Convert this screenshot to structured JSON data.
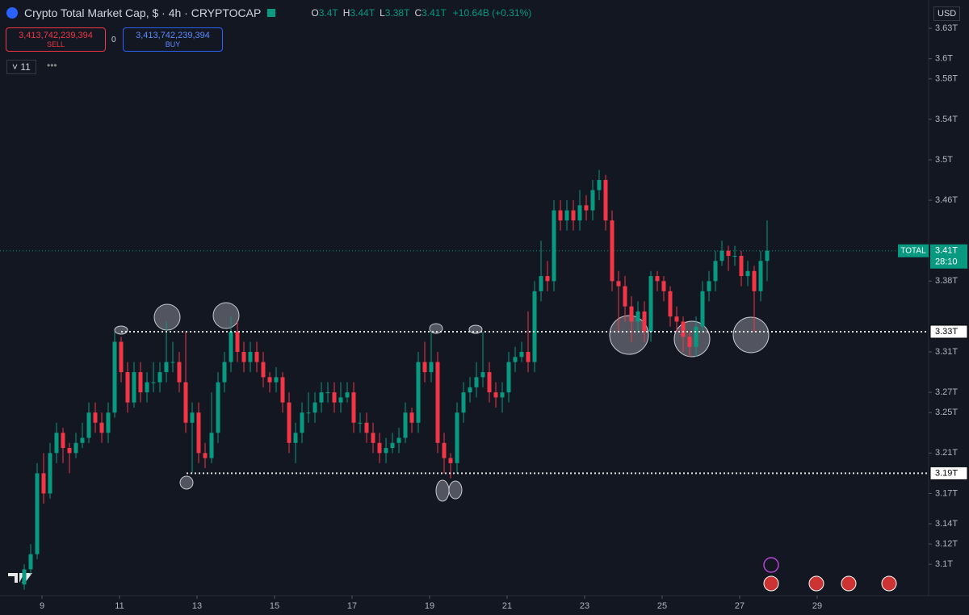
{
  "header": {
    "title": "Crypto Total Market Cap, $ · 4h · CRYPTOCAP",
    "ohlc": [
      {
        "key": "O",
        "text": "3.4T"
      },
      {
        "key": "H",
        "text": "3.44T"
      },
      {
        "key": "L",
        "text": "3.38T"
      },
      {
        "key": "C",
        "text": "3.41T"
      }
    ],
    "change": "+10.64B (+0.31%)",
    "sell": {
      "price": "3,413,742,239,394",
      "label": "SELL"
    },
    "spread": "0",
    "buy": {
      "price": "3,413,742,239,394",
      "label": "BUY"
    },
    "indicators": "11",
    "currency": "USD"
  },
  "chart_data": {
    "type": "candlestick",
    "up_color": "#089981",
    "down_color": "#f23645",
    "open": [
      3.08,
      3.095,
      3.11,
      3.19,
      3.17,
      3.21,
      3.23,
      3.215,
      3.21,
      3.22,
      3.225,
      3.25,
      3.24,
      3.23,
      3.25,
      3.32,
      3.29,
      3.26,
      3.29,
      3.27,
      3.28,
      3.28,
      3.29,
      3.3,
      3.3,
      3.28,
      3.24,
      3.25,
      3.21,
      3.205,
      3.23,
      3.28,
      3.3,
      3.33,
      3.31,
      3.3,
      3.31,
      3.3,
      3.285,
      3.28,
      3.285,
      3.26,
      3.22,
      3.23,
      3.25,
      3.25,
      3.26,
      3.27,
      3.27,
      3.26,
      3.265,
      3.27,
      3.24,
      3.24,
      3.23,
      3.22,
      3.21,
      3.215,
      3.22,
      3.225,
      3.25,
      3.24,
      3.3,
      3.29,
      3.3,
      3.22,
      3.205,
      3.2,
      3.25,
      3.27,
      3.275,
      3.285,
      3.29,
      3.27,
      3.265,
      3.27,
      3.3,
      3.305,
      3.31,
      3.3,
      3.37,
      3.385,
      3.38,
      3.45,
      3.44,
      3.45,
      3.44,
      3.455,
      3.45,
      3.47,
      3.48,
      3.44,
      3.38,
      3.375,
      3.355,
      3.34,
      3.35,
      3.33,
      3.385,
      3.38,
      3.37,
      3.345,
      3.34,
      3.325,
      3.315,
      3.335,
      3.37,
      3.38,
      3.4,
      3.41,
      3.405,
      3.405,
      3.385,
      3.39,
      3.37,
      3.4
    ],
    "high": [
      3.1,
      3.12,
      3.2,
      3.21,
      3.22,
      3.24,
      3.235,
      3.22,
      3.23,
      3.24,
      3.26,
      3.26,
      3.25,
      3.26,
      3.33,
      3.325,
      3.3,
      3.3,
      3.3,
      3.29,
      3.3,
      3.3,
      3.34,
      3.32,
      3.31,
      3.33,
      3.26,
      3.26,
      3.22,
      3.27,
      3.29,
      3.31,
      3.345,
      3.34,
      3.32,
      3.32,
      3.32,
      3.31,
      3.29,
      3.295,
      3.29,
      3.27,
      3.24,
      3.26,
      3.27,
      3.27,
      3.28,
      3.28,
      3.28,
      3.28,
      3.28,
      3.28,
      3.25,
      3.25,
      3.24,
      3.23,
      3.225,
      3.23,
      3.235,
      3.26,
      3.255,
      3.31,
      3.32,
      3.33,
      3.31,
      3.23,
      3.21,
      3.26,
      3.28,
      3.285,
      3.3,
      3.33,
      3.3,
      3.28,
      3.28,
      3.31,
      3.315,
      3.32,
      3.35,
      3.38,
      3.42,
      3.4,
      3.46,
      3.46,
      3.46,
      3.46,
      3.47,
      3.465,
      3.48,
      3.49,
      3.485,
      3.45,
      3.39,
      3.385,
      3.365,
      3.36,
      3.36,
      3.39,
      3.39,
      3.385,
      3.375,
      3.355,
      3.345,
      3.33,
      3.345,
      3.38,
      3.39,
      3.41,
      3.42,
      3.415,
      3.415,
      3.41,
      3.4,
      3.395,
      3.41,
      3.44
    ],
    "low": [
      3.075,
      3.09,
      3.105,
      3.16,
      3.165,
      3.2,
      3.2,
      3.19,
      3.205,
      3.215,
      3.22,
      3.23,
      3.22,
      3.22,
      3.245,
      3.28,
      3.25,
      3.255,
      3.26,
      3.26,
      3.27,
      3.27,
      3.28,
      3.29,
      3.27,
      3.23,
      3.19,
      3.2,
      3.195,
      3.2,
      3.22,
      3.27,
      3.29,
      3.3,
      3.29,
      3.29,
      3.29,
      3.275,
      3.27,
      3.27,
      3.25,
      3.21,
      3.2,
      3.22,
      3.24,
      3.24,
      3.25,
      3.26,
      3.25,
      3.25,
      3.26,
      3.23,
      3.23,
      3.22,
      3.21,
      3.2,
      3.2,
      3.21,
      3.21,
      3.22,
      3.23,
      3.23,
      3.28,
      3.28,
      3.21,
      3.19,
      3.185,
      3.19,
      3.24,
      3.26,
      3.265,
      3.275,
      3.26,
      3.255,
      3.25,
      3.26,
      3.29,
      3.3,
      3.29,
      3.29,
      3.36,
      3.37,
      3.37,
      3.43,
      3.43,
      3.43,
      3.43,
      3.44,
      3.44,
      3.46,
      3.43,
      3.37,
      3.33,
      3.34,
      3.32,
      3.33,
      3.32,
      3.32,
      3.37,
      3.36,
      3.335,
      3.33,
      3.31,
      3.305,
      3.305,
      3.33,
      3.36,
      3.37,
      3.395,
      3.39,
      3.395,
      3.375,
      3.375,
      3.33,
      3.36,
      3.38
    ],
    "close": [
      3.095,
      3.11,
      3.19,
      3.17,
      3.21,
      3.23,
      3.215,
      3.21,
      3.22,
      3.225,
      3.25,
      3.24,
      3.23,
      3.25,
      3.32,
      3.29,
      3.26,
      3.29,
      3.27,
      3.28,
      3.28,
      3.29,
      3.3,
      3.3,
      3.28,
      3.24,
      3.25,
      3.21,
      3.205,
      3.23,
      3.28,
      3.3,
      3.33,
      3.31,
      3.3,
      3.31,
      3.3,
      3.285,
      3.28,
      3.285,
      3.26,
      3.22,
      3.23,
      3.25,
      3.25,
      3.26,
      3.27,
      3.27,
      3.26,
      3.265,
      3.27,
      3.24,
      3.24,
      3.23,
      3.22,
      3.21,
      3.215,
      3.22,
      3.225,
      3.25,
      3.24,
      3.3,
      3.29,
      3.3,
      3.22,
      3.205,
      3.2,
      3.25,
      3.27,
      3.275,
      3.285,
      3.29,
      3.27,
      3.265,
      3.27,
      3.3,
      3.305,
      3.31,
      3.3,
      3.37,
      3.385,
      3.38,
      3.45,
      3.44,
      3.45,
      3.44,
      3.455,
      3.45,
      3.47,
      3.48,
      3.44,
      3.38,
      3.375,
      3.355,
      3.34,
      3.35,
      3.33,
      3.385,
      3.38,
      3.37,
      3.345,
      3.34,
      3.325,
      3.315,
      3.335,
      3.37,
      3.38,
      3.4,
      3.41,
      3.405,
      3.405,
      3.385,
      3.39,
      3.37,
      3.4,
      3.41
    ],
    "xlim": [
      -3.75,
      140
    ],
    "xticks": [
      {
        "value": 2.75,
        "label": "9"
      },
      {
        "value": 14.75,
        "label": "11"
      },
      {
        "value": 26.75,
        "label": "13"
      },
      {
        "value": 38.75,
        "label": "15"
      },
      {
        "value": 50.75,
        "label": "17"
      },
      {
        "value": 62.75,
        "label": "19"
      },
      {
        "value": 74.75,
        "label": "21"
      },
      {
        "value": 86.75,
        "label": "23"
      },
      {
        "value": 98.75,
        "label": "25"
      },
      {
        "value": 110.75,
        "label": "27"
      },
      {
        "value": 122.75,
        "label": "29"
      }
    ],
    "ylim": [
      3.069,
      3.658
    ],
    "yticks": [
      {
        "value": 3.63,
        "label": "3.63T"
      },
      {
        "value": 3.6,
        "label": "3.6T"
      },
      {
        "value": 3.58,
        "label": "3.58T"
      },
      {
        "value": 3.54,
        "label": "3.54T"
      },
      {
        "value": 3.5,
        "label": "3.5T"
      },
      {
        "value": 3.46,
        "label": "3.46T"
      },
      {
        "value": 3.38,
        "label": "3.38T"
      },
      {
        "value": 3.31,
        "label": "3.31T"
      },
      {
        "value": 3.27,
        "label": "3.27T"
      },
      {
        "value": 3.25,
        "label": "3.25T"
      },
      {
        "value": 3.21,
        "label": "3.21T"
      },
      {
        "value": 3.17,
        "label": "3.17T"
      },
      {
        "value": 3.14,
        "label": "3.14T"
      },
      {
        "value": 3.12,
        "label": "3.12T"
      },
      {
        "value": 3.1,
        "label": "3.1T"
      }
    ],
    "levels": [
      {
        "value": 3.33,
        "label": "3.33T"
      },
      {
        "value": 3.19,
        "label": "3.19T"
      }
    ],
    "last_price": {
      "symbol": "TOTAL",
      "value": 3.41,
      "label": "3.41T",
      "countdown": "28:10"
    }
  }
}
